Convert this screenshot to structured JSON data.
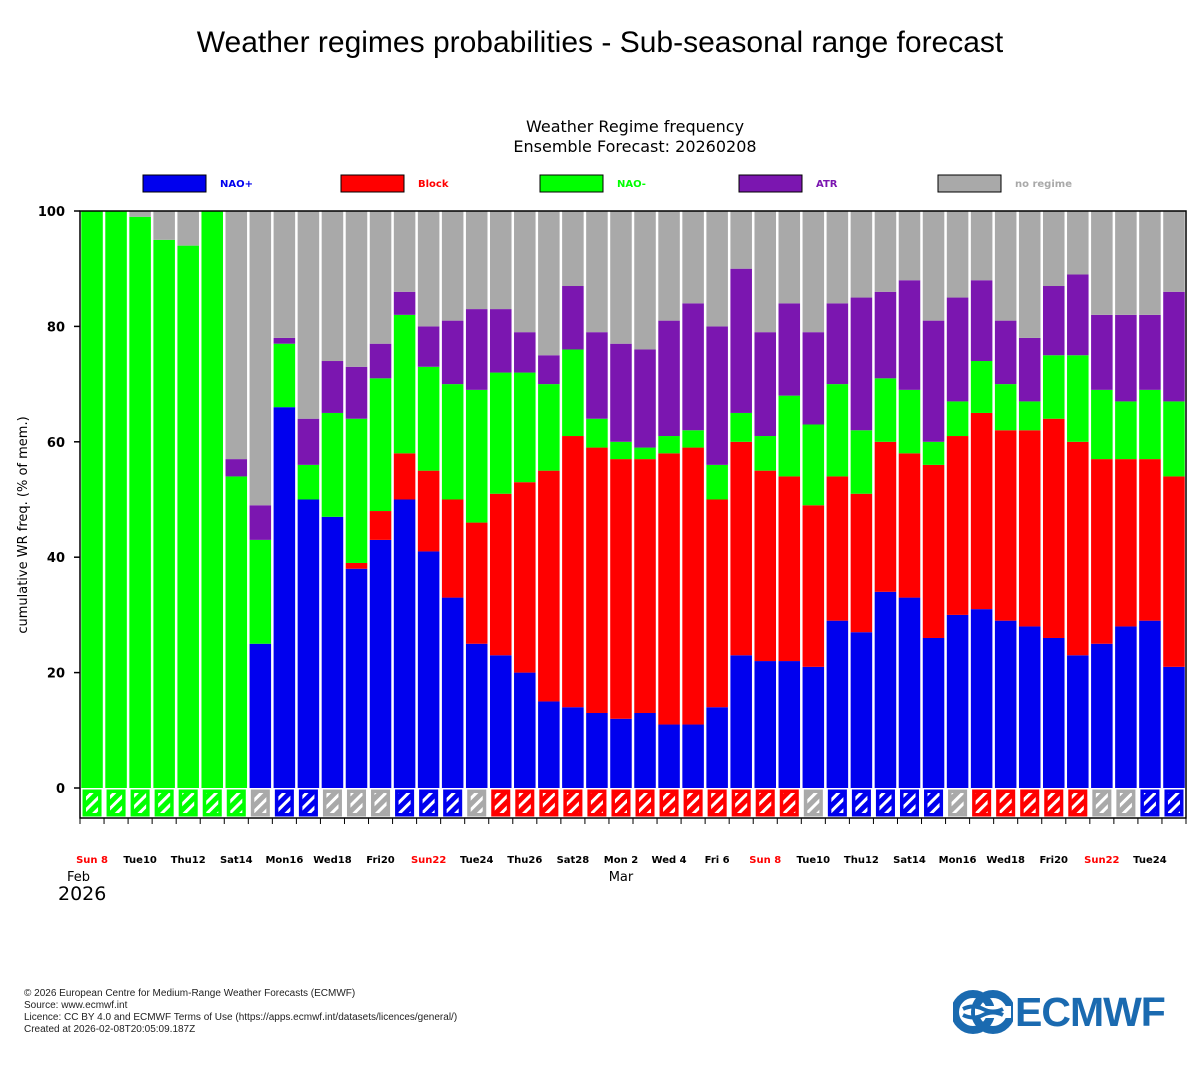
{
  "page": {
    "title": "Weather regimes probabilities - Sub-seasonal range forecast"
  },
  "chart_data": {
    "type": "bar",
    "stacked": true,
    "title": "Weather Regime frequency",
    "subtitle": "Ensemble Forecast: 20260208",
    "ylabel": "cumulative WR freq. (% of mem.)",
    "ylim": [
      -5,
      100
    ],
    "yticks": [
      0,
      20,
      40,
      60,
      80,
      100
    ],
    "grid": false,
    "legend_position": "top",
    "series": [
      {
        "name": "NAO+",
        "color": "#0000ee"
      },
      {
        "name": "Block",
        "color": "#ff0000"
      },
      {
        "name": "NAO-",
        "color": "#00ff00"
      },
      {
        "name": "ATR",
        "color": "#7b16b0"
      },
      {
        "name": "no regime",
        "color": "#a9a9a9"
      }
    ],
    "cumulative_tops": [
      [
        0,
        0,
        100,
        100,
        100
      ],
      [
        0,
        0,
        100,
        100,
        100
      ],
      [
        0,
        0,
        99,
        99,
        100
      ],
      [
        0,
        0,
        95,
        95,
        100
      ],
      [
        0,
        0,
        94,
        94,
        100
      ],
      [
        0,
        0,
        100,
        100,
        100
      ],
      [
        0,
        0,
        54,
        57,
        100
      ],
      [
        25,
        25,
        43,
        49,
        100
      ],
      [
        66,
        66,
        77,
        78,
        100
      ],
      [
        50,
        50,
        56,
        64,
        100
      ],
      [
        47,
        47,
        65,
        74,
        100
      ],
      [
        38,
        39,
        64,
        73,
        100
      ],
      [
        43,
        48,
        71,
        77,
        100
      ],
      [
        50,
        58,
        82,
        86,
        100
      ],
      [
        41,
        55,
        73,
        80,
        100
      ],
      [
        33,
        50,
        70,
        81,
        100
      ],
      [
        25,
        46,
        69,
        83,
        100
      ],
      [
        23,
        51,
        72,
        83,
        100
      ],
      [
        20,
        53,
        72,
        79,
        100
      ],
      [
        15,
        55,
        70,
        75,
        100
      ],
      [
        14,
        61,
        76,
        87,
        100
      ],
      [
        13,
        59,
        64,
        79,
        100
      ],
      [
        12,
        57,
        60,
        77,
        100
      ],
      [
        13,
        57,
        59,
        76,
        100
      ],
      [
        11,
        58,
        61,
        81,
        100
      ],
      [
        11,
        59,
        62,
        84,
        100
      ],
      [
        14,
        50,
        56,
        80,
        100
      ],
      [
        23,
        60,
        65,
        90,
        100
      ],
      [
        22,
        55,
        61,
        79,
        100
      ],
      [
        22,
        54,
        68,
        84,
        100
      ],
      [
        21,
        49,
        63,
        79,
        100
      ],
      [
        29,
        54,
        70,
        84,
        100
      ],
      [
        27,
        51,
        62,
        85,
        100
      ],
      [
        34,
        60,
        71,
        86,
        100
      ],
      [
        33,
        58,
        69,
        88,
        100
      ],
      [
        26,
        56,
        60,
        81,
        100
      ],
      [
        30,
        61,
        67,
        85,
        100
      ],
      [
        31,
        65,
        74,
        88,
        100
      ],
      [
        29,
        62,
        70,
        81,
        100
      ],
      [
        28,
        62,
        67,
        78,
        100
      ],
      [
        26,
        64,
        75,
        87,
        100
      ],
      [
        23,
        60,
        75,
        89,
        100
      ],
      [
        25,
        57,
        69,
        82,
        100
      ],
      [
        28,
        57,
        67,
        82,
        100
      ],
      [
        29,
        57,
        69,
        82,
        100
      ],
      [
        21,
        54,
        67,
        86,
        100
      ]
    ],
    "dominant_regime": [
      "NAO-",
      "NAO-",
      "NAO-",
      "NAO-",
      "NAO-",
      "NAO-",
      "NAO-",
      "no regime",
      "NAO+",
      "NAO+",
      "no regime",
      "no regime",
      "no regime",
      "NAO+",
      "NAO+",
      "NAO+",
      "no regime",
      "Block",
      "Block",
      "Block",
      "Block",
      "Block",
      "Block",
      "Block",
      "Block",
      "Block",
      "Block",
      "Block",
      "Block",
      "Block",
      "no regime",
      "NAO+",
      "NAO+",
      "NAO+",
      "NAO+",
      "NAO+",
      "no regime",
      "Block",
      "Block",
      "Block",
      "Block",
      "Block",
      "no regime",
      "no regime",
      "NAO+",
      "NAO+"
    ],
    "x_ticks": [
      {
        "label": "Sun 8",
        "index": 0,
        "weekend": true
      },
      {
        "label": "Tue10",
        "index": 2,
        "weekend": false
      },
      {
        "label": "Thu12",
        "index": 4,
        "weekend": false
      },
      {
        "label": "Sat14",
        "index": 6,
        "weekend": false
      },
      {
        "label": "Mon16",
        "index": 8,
        "weekend": false
      },
      {
        "label": "Wed18",
        "index": 10,
        "weekend": false
      },
      {
        "label": "Fri20",
        "index": 12,
        "weekend": false
      },
      {
        "label": "Sun22",
        "index": 14,
        "weekend": true
      },
      {
        "label": "Tue24",
        "index": 16,
        "weekend": false
      },
      {
        "label": "Thu26",
        "index": 18,
        "weekend": false
      },
      {
        "label": "Sat28",
        "index": 20,
        "weekend": false
      },
      {
        "label": "Mon 2",
        "index": 22,
        "weekend": false
      },
      {
        "label": "Wed 4",
        "index": 24,
        "weekend": false
      },
      {
        "label": "Fri 6",
        "index": 26,
        "weekend": false
      },
      {
        "label": "Sun 8",
        "index": 28,
        "weekend": true
      },
      {
        "label": "Tue10",
        "index": 30,
        "weekend": false
      },
      {
        "label": "Thu12",
        "index": 32,
        "weekend": false
      },
      {
        "label": "Sat14",
        "index": 34,
        "weekend": false
      },
      {
        "label": "Mon16",
        "index": 36,
        "weekend": false
      },
      {
        "label": "Wed18",
        "index": 38,
        "weekend": false
      },
      {
        "label": "Fri20",
        "index": 40,
        "weekend": false
      },
      {
        "label": "Sun22",
        "index": 42,
        "weekend": true
      },
      {
        "label": "Tue24",
        "index": 44,
        "weekend": false
      }
    ],
    "month_labels": [
      {
        "label": "Feb",
        "index": 0
      },
      {
        "label": "Mar",
        "index": 22
      }
    ],
    "year_label": "2026"
  },
  "footer": {
    "line1": "© 2026 European Centre for Medium-Range Weather Forecasts (ECMWF)",
    "line2": "Source: www.ecmwf.int",
    "line3": "Licence: CC BY 4.0 and ECMWF Terms of Use (https://apps.ecmwf.int/datasets/licences/general/)",
    "line4": "Created at 2026-02-08T20:05:09.187Z"
  },
  "logo": {
    "text": "ECMWF",
    "color": "#1a6ab0"
  }
}
